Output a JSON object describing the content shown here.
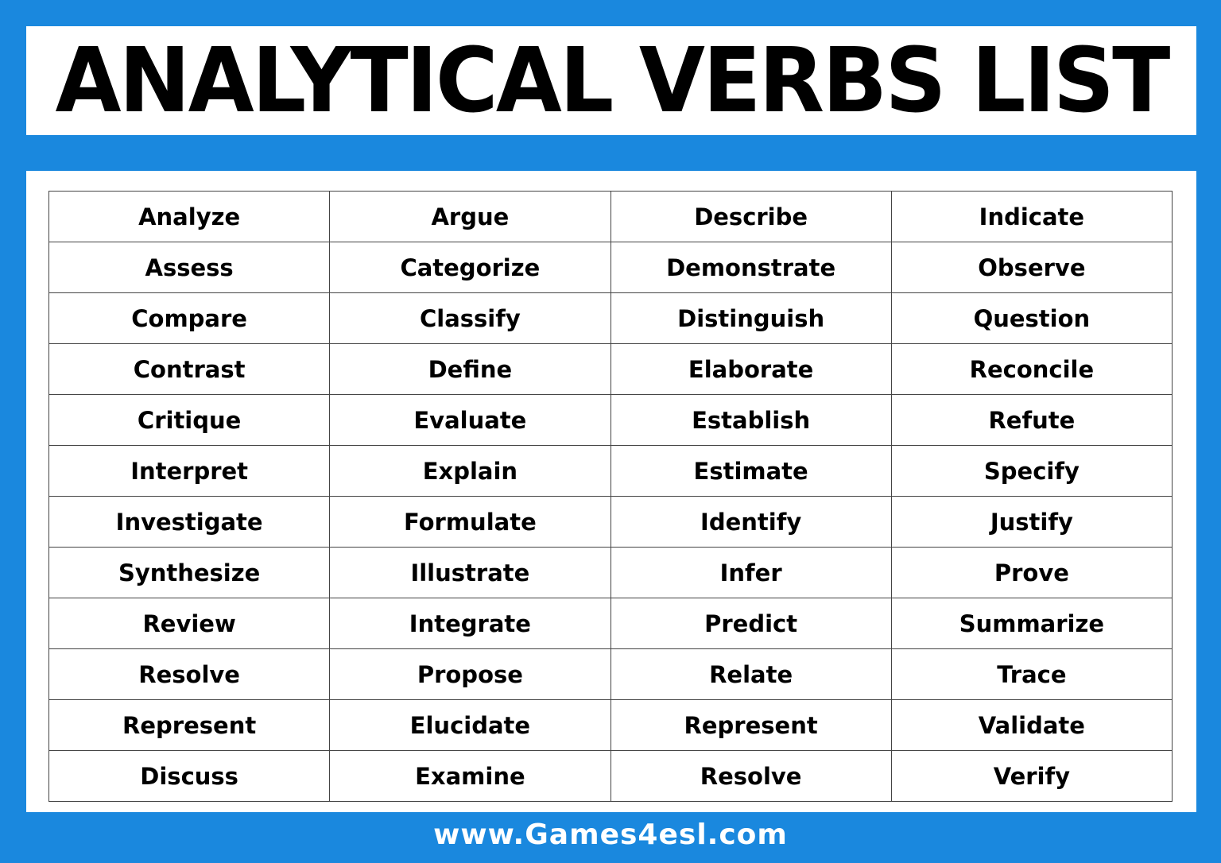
{
  "title": "ANALYTICAL VERBS LIST",
  "table": {
    "rows": [
      [
        "Analyze",
        "Argue",
        "Describe",
        "Indicate"
      ],
      [
        "Assess",
        "Categorize",
        "Demonstrate",
        "Observe"
      ],
      [
        "Compare",
        "Classify",
        "Distinguish",
        "Question"
      ],
      [
        "Contrast",
        "Define",
        "Elaborate",
        "Reconcile"
      ],
      [
        "Critique",
        "Evaluate",
        "Establish",
        "Refute"
      ],
      [
        "Interpret",
        "Explain",
        "Estimate",
        "Specify"
      ],
      [
        "Investigate",
        "Formulate",
        "Identify",
        "Justify"
      ],
      [
        "Synthesize",
        "Illustrate",
        "Infer",
        "Prove"
      ],
      [
        "Review",
        "Integrate",
        "Predict",
        "Summarize"
      ],
      [
        "Resolve",
        "Propose",
        "Relate",
        "Trace"
      ],
      [
        "Represent",
        "Elucidate",
        "Represent",
        "Validate"
      ],
      [
        "Discuss",
        "Examine",
        "Resolve",
        "Verify"
      ]
    ]
  },
  "footer": "www.Games4esl.com",
  "colors": {
    "background": "#1a88de",
    "panel": "#ffffff",
    "text": "#000000"
  }
}
